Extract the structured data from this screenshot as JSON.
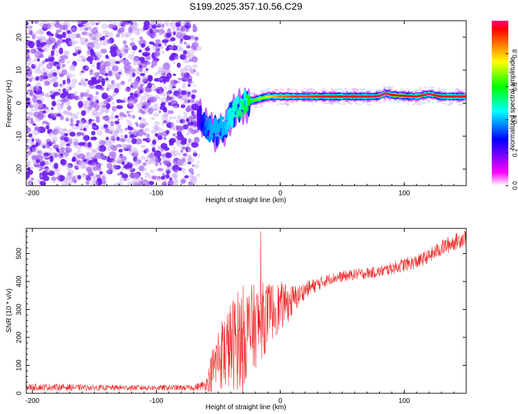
{
  "chart_data": [
    {
      "type": "heatmap",
      "title": "S199.2025.357.10.56.C29",
      "xlabel": "Height of straight line (km)",
      "ylabel": "Frequency (Hz)",
      "xlim": [
        -205,
        150
      ],
      "ylim": [
        -25,
        25
      ],
      "x_ticks": [
        -200,
        -100,
        0,
        100
      ],
      "y_ticks": [
        -20,
        -10,
        0,
        10,
        20
      ],
      "colorbar": {
        "label": "Normalized spectral amplitude",
        "range": [
          0,
          1
        ],
        "ticks": [
          0.0,
          0.2,
          0.4,
          0.6,
          0.8
        ],
        "tick_labels": [
          "0.0",
          "0.2",
          "0.4",
          "0.6",
          "0.8"
        ],
        "colormap": [
          "#ffffff",
          "#ff00ff",
          "#0000ff",
          "#00ffff",
          "#00ff00",
          "#ffff00",
          "#ff8000",
          "#ff0000",
          "#ff0080"
        ]
      },
      "noise_region_x": [
        -205,
        -66
      ],
      "ridge": {
        "x": [
          -66,
          -60,
          -55,
          -50,
          -45,
          -40,
          -35,
          -30,
          -25,
          -20,
          -15,
          -10,
          -5,
          0,
          10,
          20,
          40,
          60,
          75,
          80,
          85,
          90,
          100,
          110,
          120,
          130,
          140,
          150
        ],
        "freq": [
          -4,
          -7,
          -9,
          -8,
          -7,
          -4,
          -2,
          -1,
          0.5,
          1,
          1.5,
          2,
          2,
          2,
          2,
          2,
          2,
          2,
          2,
          2.2,
          3,
          2.5,
          2.2,
          2,
          2.8,
          2,
          2,
          2
        ],
        "amplitude": [
          0.2,
          0.35,
          0.4,
          0.4,
          0.4,
          0.45,
          0.5,
          0.55,
          0.6,
          0.65,
          0.7,
          0.75,
          0.8,
          0.85,
          0.9,
          0.9,
          0.95,
          0.95,
          0.95,
          1.0,
          1.0,
          0.95,
          0.95,
          0.95,
          1.0,
          0.95,
          0.95,
          0.95
        ]
      }
    },
    {
      "type": "line",
      "title": "",
      "xlabel": "Height of straight line (km)",
      "ylabel": "SNR (10 * v/v)",
      "xlim": [
        -205,
        150
      ],
      "ylim": [
        0,
        590
      ],
      "x_ticks": [
        -200,
        -100,
        0,
        100
      ],
      "y_ticks": [
        0,
        100,
        200,
        300,
        400,
        500
      ],
      "color": "#ee2222",
      "series": [
        {
          "name": "SNR",
          "x": [
            -205,
            -180,
            -150,
            -120,
            -90,
            -70,
            -60,
            -55,
            -50,
            -45,
            -40,
            -35,
            -30,
            -25,
            -20,
            -15,
            -10,
            -5,
            0,
            5,
            10,
            15,
            20,
            30,
            40,
            60,
            80,
            100,
            110,
            120,
            130,
            140,
            150
          ],
          "y": [
            22,
            22,
            20,
            20,
            20,
            20,
            30,
            80,
            130,
            150,
            170,
            190,
            210,
            220,
            240,
            260,
            280,
            300,
            310,
            320,
            330,
            350,
            370,
            390,
            410,
            425,
            435,
            460,
            470,
            490,
            520,
            540,
            560
          ],
          "amplitude": [
            12,
            12,
            10,
            10,
            10,
            10,
            20,
            80,
            120,
            140,
            160,
            180,
            180,
            170,
            150,
            140,
            120,
            100,
            90,
            70,
            60,
            40,
            30,
            25,
            20,
            20,
            20,
            25,
            25,
            25,
            30,
            30,
            30
          ]
        }
      ]
    }
  ]
}
